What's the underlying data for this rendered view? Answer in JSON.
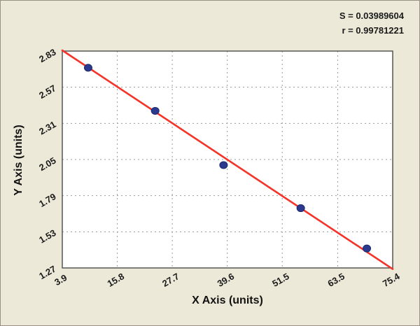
{
  "chart_data": {
    "type": "scatter",
    "title": "",
    "xlabel": "X Axis (units)",
    "ylabel": "Y Axis (units)",
    "stats": {
      "s": "S = 0.03989604",
      "r": "r = 0.99781221"
    },
    "x_ticks": [
      "3.9",
      "15.8",
      "27.7",
      "39.6",
      "51.5",
      "63.5",
      "75.4"
    ],
    "y_ticks": [
      "1.27",
      "1.53",
      "1.79",
      "2.05",
      "2.31",
      "2.57",
      "2.83"
    ],
    "xlim": [
      3.9,
      75.4
    ],
    "ylim": [
      1.27,
      2.83
    ],
    "points": [
      {
        "x": 9.5,
        "y": 2.71
      },
      {
        "x": 24.0,
        "y": 2.4
      },
      {
        "x": 38.8,
        "y": 2.01
      },
      {
        "x": 55.5,
        "y": 1.7
      },
      {
        "x": 69.8,
        "y": 1.41
      }
    ],
    "fit_line": {
      "x1": 3.9,
      "y1": 2.835,
      "x2": 75.4,
      "y2": 1.262
    },
    "grid": true,
    "legend": "none",
    "colors": {
      "background": "#ede9d9",
      "plot_bg": "#ffffff",
      "point_fill": "#2b3a8f",
      "point_edge": "#1d2a6b",
      "line": "#f53328",
      "grid_line": "#9a9a9a",
      "frame": "#4a4a4a"
    }
  }
}
